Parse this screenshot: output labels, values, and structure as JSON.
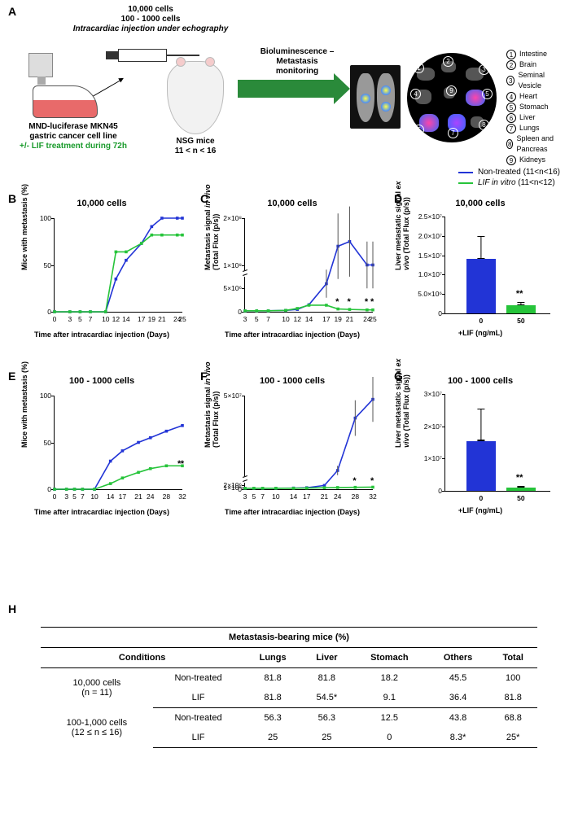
{
  "colors": {
    "blue": "#2234d6",
    "green": "#26c43a",
    "black": "#000000"
  },
  "panelA": {
    "label": "A",
    "cellCounts": "10,000 cells",
    "cellCounts2": "100 - 1000 cells",
    "injection": "Intracardiac injection under echography",
    "flaskLabel1": "MND-luciferase MKN45",
    "flaskLabel2": "gastric cancer cell line",
    "flaskLabel3": "+/- LIF treatment during 72h",
    "mouseLabel1": "NSG mice",
    "mouseLabel2": "11 < n < 16",
    "arrowLabel1": "Bioluminescence –",
    "arrowLabel2": "Metastasis",
    "arrowLabel3": "monitoring",
    "organs": [
      "Intestine",
      "Brain",
      "Seminal Vesicle",
      "Heart",
      "Stomach",
      "Liver",
      "Lungs",
      "Spleen and Pancreas",
      "Kidneys"
    ]
  },
  "legend": {
    "nonTreated": "Non-treated (11<n<16)",
    "lif": "LIF in vitro (11<n<12)"
  },
  "panelB": {
    "label": "B",
    "title": "10,000 cells",
    "ylabel": "Mice with metastasis (%)",
    "xlabel": "Time after intracardiac injection (Days)",
    "yticks": [
      0,
      50,
      100
    ],
    "x": [
      0,
      3,
      5,
      7,
      10,
      12,
      14,
      17,
      19,
      21,
      24,
      25
    ],
    "blue": [
      0,
      0,
      0,
      0,
      0,
      35,
      55,
      73,
      91,
      100,
      100,
      100
    ],
    "green": [
      0,
      0,
      0,
      0,
      0,
      64,
      64,
      73,
      82,
      82,
      82,
      82
    ]
  },
  "panelC": {
    "label": "C",
    "title": "10,000 cells",
    "ylabel": "Metastasis signal in vivo (Total Flux (p/s))",
    "xlabel": "Time after intracardiac injection (Days)",
    "axisbreak": true,
    "yticks_lo": [
      "0",
      "5×10⁶"
    ],
    "yticks_hi": [
      "1×10⁸",
      "2×10⁸"
    ],
    "x": [
      3,
      5,
      7,
      10,
      12,
      14,
      17,
      19,
      21,
      24,
      25
    ],
    "blue": [
      0.2,
      0.2,
      0.2,
      0.3,
      0.5,
      1.5,
      6,
      14,
      15,
      10,
      10
    ],
    "green": [
      0.2,
      0.2,
      0.2,
      0.3,
      0.7,
      1.4,
      1.4,
      0.6,
      0.5,
      0.4,
      0.4
    ],
    "sig_at": [
      19,
      21,
      24,
      25
    ],
    "sig_mark": "*"
  },
  "panelD": {
    "label": "D",
    "title": "10,000 cells",
    "ylabel": "Liver metastatic signal ex vivo (Total Flux (p/s))",
    "yticks": [
      "0",
      "5.0×10⁶",
      "1.0×10⁷",
      "1.5×10⁷",
      "2.0×10⁷",
      "2.5×10⁷"
    ],
    "xlab": "+LIF (ng/mL)",
    "cats": [
      "0",
      "50"
    ],
    "vals": [
      14000000.0,
      2000000.0
    ],
    "errs": [
      6000000.0,
      1000000.0
    ],
    "ymax": 25000000.0,
    "sig": "**"
  },
  "panelE": {
    "label": "E",
    "title": "100 - 1000 cells",
    "ylabel": "Mice with metastasis (%)",
    "xlabel": "Time after intracardiac injection (Days)",
    "yticks": [
      0,
      50,
      100
    ],
    "x": [
      0,
      3,
      5,
      7,
      10,
      14,
      17,
      21,
      24,
      28,
      32
    ],
    "blue": [
      0,
      0,
      0,
      0,
      0,
      30,
      41,
      50,
      55,
      62,
      68
    ],
    "green": [
      0,
      0,
      0,
      0,
      0,
      6,
      12,
      18,
      22,
      25,
      25
    ],
    "sig_end": "*"
  },
  "panelF": {
    "label": "F",
    "title": "100 - 1000 cells",
    "ylabel": "Metastasis signal in vivo (Total Flux (p/s))",
    "xlabel": "Time after intracardiac injection (Days)",
    "yticks": [
      "0",
      "1×10⁶",
      "2×10⁶",
      "5×10⁷"
    ],
    "x": [
      3,
      5,
      7,
      10,
      14,
      17,
      21,
      24,
      28,
      32
    ],
    "blue": [
      0.5,
      0.5,
      0.5,
      0.5,
      0.6,
      0.8,
      2,
      10,
      38,
      48
    ],
    "green": [
      0.5,
      0.5,
      0.5,
      0.5,
      0.5,
      0.6,
      0.8,
      0.9,
      1,
      1.1
    ],
    "sig_at": [
      28,
      32
    ],
    "sig_mark": "*",
    "ymax": 50
  },
  "panelG": {
    "label": "G",
    "title": "100 - 1000 cells",
    "ylabel": "Liver metastatic signal ex vivo (Total Flux (p/s))",
    "yticks": [
      "0",
      "1×10⁷",
      "2×10⁷",
      "3×10⁷"
    ],
    "xlab": "+LIF (ng/mL)",
    "cats": [
      "0",
      "50"
    ],
    "vals": [
      15500000.0,
      1000000.0
    ],
    "errs": [
      10000000.0,
      500000.0
    ],
    "ymax": 30000000.0,
    "sig": "**"
  },
  "panelH": {
    "label": "H",
    "title": "Metastasis-bearing mice (%)",
    "columns": [
      "Conditions",
      "",
      "Lungs",
      "Liver",
      "Stomach",
      "Others",
      "Total"
    ],
    "rows": [
      {
        "group": "10,000 cells",
        "groupNote": "(n = 11)",
        "cond": "Non-treated",
        "v": [
          "81.8",
          "81.8",
          "18.2",
          "45.5",
          "100"
        ]
      },
      {
        "group": "",
        "groupNote": "",
        "cond": "LIF",
        "v": [
          "81.8",
          "54.5*",
          "9.1",
          "36.4",
          "81.8"
        ]
      },
      {
        "group": "100-1,000 cells",
        "groupNote": "(12 ≤ n ≤ 16)",
        "cond": "Non-treated",
        "v": [
          "56.3",
          "56.3",
          "12.5",
          "43.8",
          "68.8"
        ]
      },
      {
        "group": "",
        "groupNote": "",
        "cond": "LIF",
        "v": [
          "25",
          "25",
          "0",
          "8.3*",
          "25*"
        ]
      }
    ]
  }
}
